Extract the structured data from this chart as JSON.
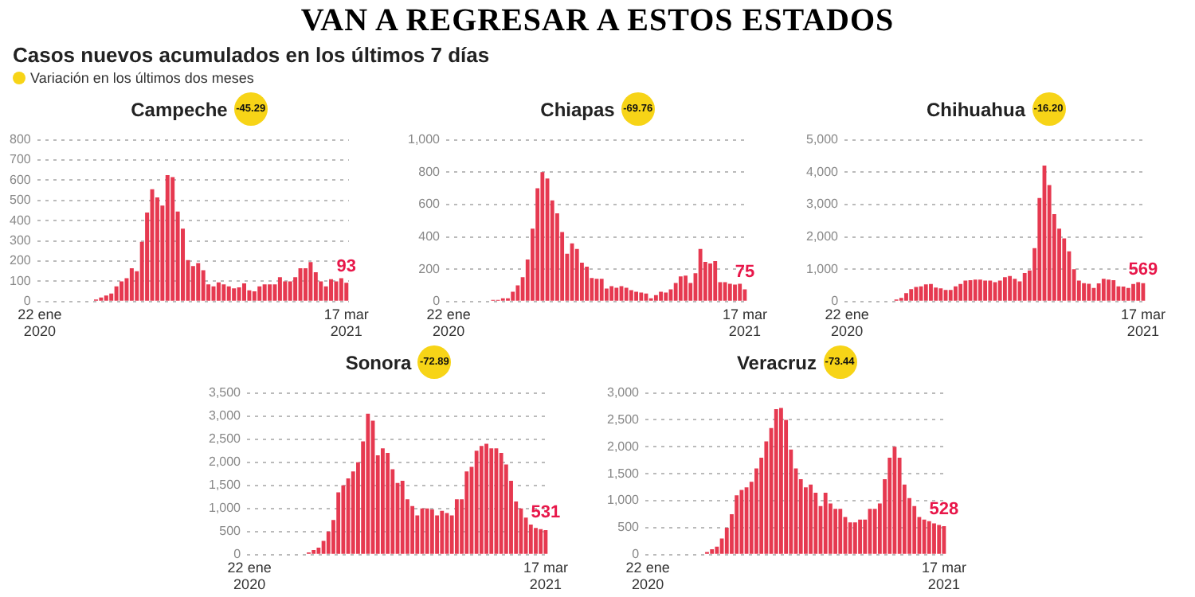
{
  "chart_data": [
    {
      "type": "other",
      "title": "VAN A REGRESAR A ESTOS ESTADOS",
      "subtitle": "Casos nuevos acumulados en los últimos 7 días",
      "annotations": [
        "Variación en los últimos dos meses"
      ]
    },
    {
      "type": "bar",
      "title": "Campeche",
      "subtitle": "-45.29",
      "categories": [
        "22 ene\n2020",
        null,
        null,
        null,
        null,
        null,
        null,
        null,
        null,
        null,
        null,
        null,
        null,
        null,
        null,
        null,
        null,
        null,
        null,
        null,
        null,
        null,
        null,
        null,
        null,
        null,
        null,
        null,
        null,
        null,
        null,
        null,
        null,
        null,
        null,
        null,
        null,
        null,
        null,
        null,
        null,
        null,
        null,
        null,
        null,
        null,
        null,
        null,
        null,
        null,
        null,
        null,
        null,
        null,
        null,
        null,
        null,
        null,
        null,
        null,
        "17 mar\n2021"
      ],
      "series": [
        {
          "color": "#e63950",
          "values": [
            0,
            0,
            0,
            0,
            0,
            0,
            0,
            0,
            0,
            0,
            0,
            10,
            20,
            30,
            40,
            75,
            100,
            115,
            165,
            150,
            295,
            440,
            555,
            515,
            475,
            625,
            615,
            445,
            360,
            205,
            175,
            190,
            155,
            85,
            75,
            95,
            85,
            75,
            65,
            70,
            90,
            55,
            50,
            75,
            85,
            85,
            85,
            120,
            100,
            100,
            120,
            165,
            165,
            195,
            145,
            100,
            75,
            110,
            100,
            115,
            93
          ],
          "value_labels": [
            null,
            null,
            null,
            null,
            null,
            null,
            null,
            null,
            null,
            null,
            null,
            null,
            null,
            null,
            null,
            null,
            null,
            null,
            null,
            null,
            null,
            null,
            null,
            null,
            null,
            null,
            null,
            null,
            null,
            null,
            null,
            null,
            null,
            null,
            null,
            null,
            null,
            null,
            null,
            null,
            null,
            null,
            null,
            null,
            null,
            null,
            null,
            null,
            null,
            null,
            null,
            null,
            null,
            null,
            null,
            null,
            null,
            null,
            null,
            null,
            "93"
          ]
        }
      ],
      "ylim": [
        0,
        800
      ],
      "yticks": [
        0,
        100,
        200,
        300,
        400,
        500,
        600,
        700,
        800
      ],
      "grid": "y",
      "legend": false
    },
    {
      "type": "bar",
      "title": "Chiapas",
      "subtitle": "-69.76",
      "categories": [
        "22 ene\n2020",
        null,
        null,
        null,
        null,
        null,
        null,
        null,
        null,
        null,
        null,
        null,
        null,
        null,
        null,
        null,
        null,
        null,
        null,
        null,
        null,
        null,
        null,
        null,
        null,
        null,
        null,
        null,
        null,
        null,
        null,
        null,
        null,
        null,
        null,
        null,
        null,
        null,
        null,
        null,
        null,
        null,
        null,
        null,
        null,
        null,
        null,
        null,
        null,
        null,
        null,
        null,
        null,
        null,
        null,
        null,
        null,
        null,
        null,
        null,
        "17 mar\n2021"
      ],
      "series": [
        {
          "color": "#e63950",
          "values": [
            0,
            0,
            0,
            0,
            0,
            0,
            0,
            0,
            0,
            10,
            10,
            20,
            20,
            60,
            100,
            150,
            260,
            450,
            700,
            800,
            760,
            625,
            545,
            430,
            295,
            360,
            325,
            240,
            215,
            145,
            140,
            140,
            80,
            95,
            85,
            95,
            85,
            70,
            60,
            55,
            50,
            20,
            40,
            60,
            55,
            75,
            115,
            155,
            160,
            115,
            175,
            325,
            245,
            235,
            250,
            120,
            120,
            110,
            105,
            110,
            75
          ],
          "value_labels": [
            null,
            null,
            null,
            null,
            null,
            null,
            null,
            null,
            null,
            null,
            null,
            null,
            null,
            null,
            null,
            null,
            null,
            null,
            null,
            null,
            null,
            null,
            null,
            null,
            null,
            null,
            null,
            null,
            null,
            null,
            null,
            null,
            null,
            null,
            null,
            null,
            null,
            null,
            null,
            null,
            null,
            null,
            null,
            null,
            null,
            null,
            null,
            null,
            null,
            null,
            null,
            null,
            null,
            null,
            null,
            null,
            null,
            null,
            null,
            null,
            "75"
          ]
        }
      ],
      "ylim": [
        0,
        1000
      ],
      "yticks": [
        0,
        200,
        400,
        600,
        800,
        {
          "value": 1000,
          "label": "1,000"
        }
      ],
      "grid": "y",
      "legend": false
    },
    {
      "type": "bar",
      "title": "Chihuahua",
      "subtitle": "-16.20",
      "categories": [
        "22 ene\n2020",
        null,
        null,
        null,
        null,
        null,
        null,
        null,
        null,
        null,
        null,
        null,
        null,
        null,
        null,
        null,
        null,
        null,
        null,
        null,
        null,
        null,
        null,
        null,
        null,
        null,
        null,
        null,
        null,
        null,
        null,
        null,
        null,
        null,
        null,
        null,
        null,
        null,
        null,
        null,
        null,
        null,
        null,
        null,
        null,
        null,
        null,
        null,
        null,
        null,
        null,
        null,
        null,
        null,
        null,
        null,
        null,
        null,
        null,
        null,
        "17 mar\n2021"
      ],
      "series": [
        {
          "color": "#e63950",
          "values": [
            0,
            0,
            0,
            0,
            0,
            0,
            0,
            0,
            0,
            0,
            60,
            110,
            260,
            380,
            450,
            470,
            530,
            540,
            430,
            410,
            360,
            360,
            470,
            540,
            650,
            660,
            680,
            680,
            650,
            650,
            600,
            650,
            750,
            790,
            700,
            620,
            880,
            960,
            1650,
            3200,
            4200,
            3600,
            2700,
            2250,
            1950,
            1550,
            1000,
            650,
            570,
            550,
            420,
            560,
            700,
            680,
            660,
            470,
            460,
            420,
            540,
            600,
            569
          ],
          "value_labels": [
            null,
            null,
            null,
            null,
            null,
            null,
            null,
            null,
            null,
            null,
            null,
            null,
            null,
            null,
            null,
            null,
            null,
            null,
            null,
            null,
            null,
            null,
            null,
            null,
            null,
            null,
            null,
            null,
            null,
            null,
            null,
            null,
            null,
            null,
            null,
            null,
            null,
            null,
            null,
            null,
            null,
            null,
            null,
            null,
            null,
            null,
            null,
            null,
            null,
            null,
            null,
            null,
            null,
            null,
            null,
            null,
            null,
            null,
            null,
            null,
            "569"
          ]
        }
      ],
      "ylim": [
        0,
        5000
      ],
      "yticks": [
        0,
        {
          "value": 1000,
          "label": "1,000"
        },
        {
          "value": 2000,
          "label": "2,000"
        },
        {
          "value": 3000,
          "label": "3,000"
        },
        {
          "value": 4000,
          "label": "4,000"
        },
        {
          "value": 5000,
          "label": "5,000"
        }
      ],
      "grid": "y",
      "legend": false
    },
    {
      "type": "bar",
      "title": "Sonora",
      "subtitle": "-72.89",
      "categories": [
        "22 ene\n2020",
        null,
        null,
        null,
        null,
        null,
        null,
        null,
        null,
        null,
        null,
        null,
        null,
        null,
        null,
        null,
        null,
        null,
        null,
        null,
        null,
        null,
        null,
        null,
        null,
        null,
        null,
        null,
        null,
        null,
        null,
        null,
        null,
        null,
        null,
        null,
        null,
        null,
        null,
        null,
        null,
        null,
        null,
        null,
        null,
        null,
        null,
        null,
        null,
        null,
        null,
        null,
        null,
        null,
        null,
        null,
        null,
        null,
        null,
        null,
        "17 mar\n2021"
      ],
      "series": [
        {
          "color": "#e63950",
          "values": [
            0,
            0,
            0,
            0,
            0,
            0,
            0,
            0,
            0,
            0,
            0,
            0,
            50,
            100,
            150,
            300,
            500,
            750,
            1350,
            1500,
            1650,
            1800,
            2000,
            2450,
            3050,
            2900,
            2150,
            2300,
            2200,
            1850,
            1550,
            1600,
            1200,
            1050,
            850,
            1000,
            1000,
            980,
            850,
            950,
            900,
            850,
            1200,
            1200,
            1800,
            1900,
            2250,
            2350,
            2400,
            2300,
            2300,
            2200,
            1950,
            1600,
            1150,
            1000,
            800,
            650,
            580,
            550,
            531
          ],
          "value_labels": [
            null,
            null,
            null,
            null,
            null,
            null,
            null,
            null,
            null,
            null,
            null,
            null,
            null,
            null,
            null,
            null,
            null,
            null,
            null,
            null,
            null,
            null,
            null,
            null,
            null,
            null,
            null,
            null,
            null,
            null,
            null,
            null,
            null,
            null,
            null,
            null,
            null,
            null,
            null,
            null,
            null,
            null,
            null,
            null,
            null,
            null,
            null,
            null,
            null,
            null,
            null,
            null,
            null,
            null,
            null,
            null,
            null,
            null,
            null,
            null,
            "531"
          ]
        }
      ],
      "ylim": [
        0,
        3500
      ],
      "yticks": [
        0,
        500,
        {
          "value": 1000,
          "label": "1,000"
        },
        {
          "value": 1500,
          "label": "1,500"
        },
        {
          "value": 2000,
          "label": "2,000"
        },
        {
          "value": 2500,
          "label": "2,500"
        },
        {
          "value": 3000,
          "label": "3,000"
        },
        {
          "value": 3500,
          "label": "3,500"
        }
      ],
      "grid": "y",
      "legend": false
    },
    {
      "type": "bar",
      "title": "Veracruz",
      "subtitle": "-73.44",
      "categories": [
        "22 ene\n2020",
        null,
        null,
        null,
        null,
        null,
        null,
        null,
        null,
        null,
        null,
        null,
        null,
        null,
        null,
        null,
        null,
        null,
        null,
        null,
        null,
        null,
        null,
        null,
        null,
        null,
        null,
        null,
        null,
        null,
        null,
        null,
        null,
        null,
        null,
        null,
        null,
        null,
        null,
        null,
        null,
        null,
        null,
        null,
        null,
        null,
        null,
        null,
        null,
        null,
        null,
        null,
        null,
        null,
        null,
        null,
        null,
        null,
        null,
        null,
        "17 mar\n2021"
      ],
      "series": [
        {
          "color": "#e63950",
          "values": [
            0,
            0,
            0,
            0,
            0,
            0,
            0,
            0,
            0,
            0,
            0,
            0,
            50,
            100,
            150,
            300,
            500,
            750,
            1100,
            1200,
            1250,
            1350,
            1600,
            1800,
            2100,
            2350,
            2700,
            2720,
            2500,
            1950,
            1600,
            1400,
            1250,
            1300,
            1150,
            900,
            1150,
            950,
            850,
            850,
            700,
            600,
            600,
            650,
            650,
            850,
            850,
            950,
            1400,
            1800,
            2000,
            1800,
            1300,
            1050,
            900,
            700,
            650,
            620,
            580,
            550,
            528
          ],
          "value_labels": [
            null,
            null,
            null,
            null,
            null,
            null,
            null,
            null,
            null,
            null,
            null,
            null,
            null,
            null,
            null,
            null,
            null,
            null,
            null,
            null,
            null,
            null,
            null,
            null,
            null,
            null,
            null,
            null,
            null,
            null,
            null,
            null,
            null,
            null,
            null,
            null,
            null,
            null,
            null,
            null,
            null,
            null,
            null,
            null,
            null,
            null,
            null,
            null,
            null,
            null,
            null,
            null,
            null,
            null,
            null,
            null,
            null,
            null,
            null,
            null,
            "528"
          ]
        }
      ],
      "ylim": [
        0,
        3000
      ],
      "yticks": [
        0,
        500,
        {
          "value": 1000,
          "label": "1,000"
        },
        {
          "value": 1500,
          "label": "1,500"
        },
        {
          "value": 2000,
          "label": "2,000"
        },
        {
          "value": 2500,
          "label": "2,500"
        },
        {
          "value": 3000,
          "label": "3,000"
        }
      ],
      "grid": "y",
      "legend": false
    }
  ]
}
